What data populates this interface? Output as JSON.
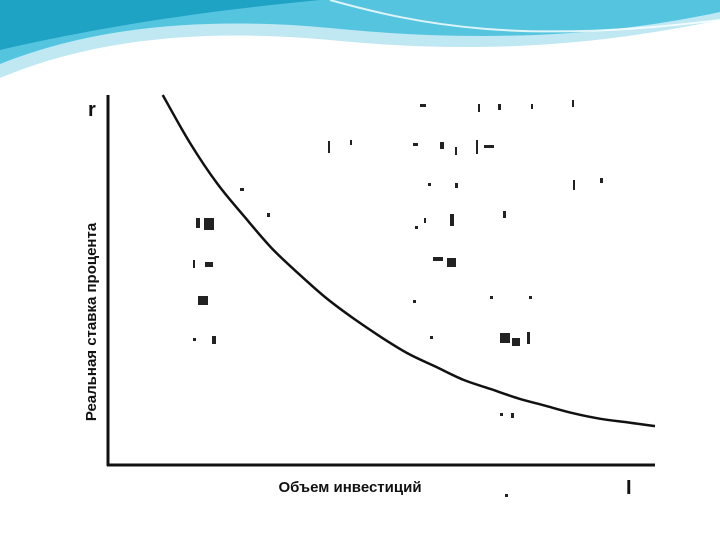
{
  "slide": {
    "background": "#ffffff",
    "header_colors": [
      "#1fa3c4",
      "#55c5df",
      "#bfe8f3"
    ]
  },
  "chart_data": {
    "type": "line",
    "title": "",
    "y_axis_symbol": "r",
    "x_axis_symbol": "I",
    "ylabel": "Реальная ставка процента",
    "xlabel": "Объем инвестиций",
    "grid": false,
    "legend": "none",
    "xlim": [
      0,
      100
    ],
    "ylim": [
      0,
      100
    ],
    "series": [
      {
        "color": "#111111",
        "x": [
          10,
          15,
          20,
          25,
          30,
          35,
          40,
          45,
          50,
          55,
          60,
          65,
          70,
          75,
          80,
          85,
          90,
          95,
          100
        ],
        "y": [
          100,
          87,
          76,
          67,
          58.5,
          51.5,
          45,
          39.5,
          34.5,
          30,
          26.5,
          23,
          20.5,
          18,
          16,
          14,
          12.5,
          11.5,
          10.5
        ]
      }
    ]
  }
}
